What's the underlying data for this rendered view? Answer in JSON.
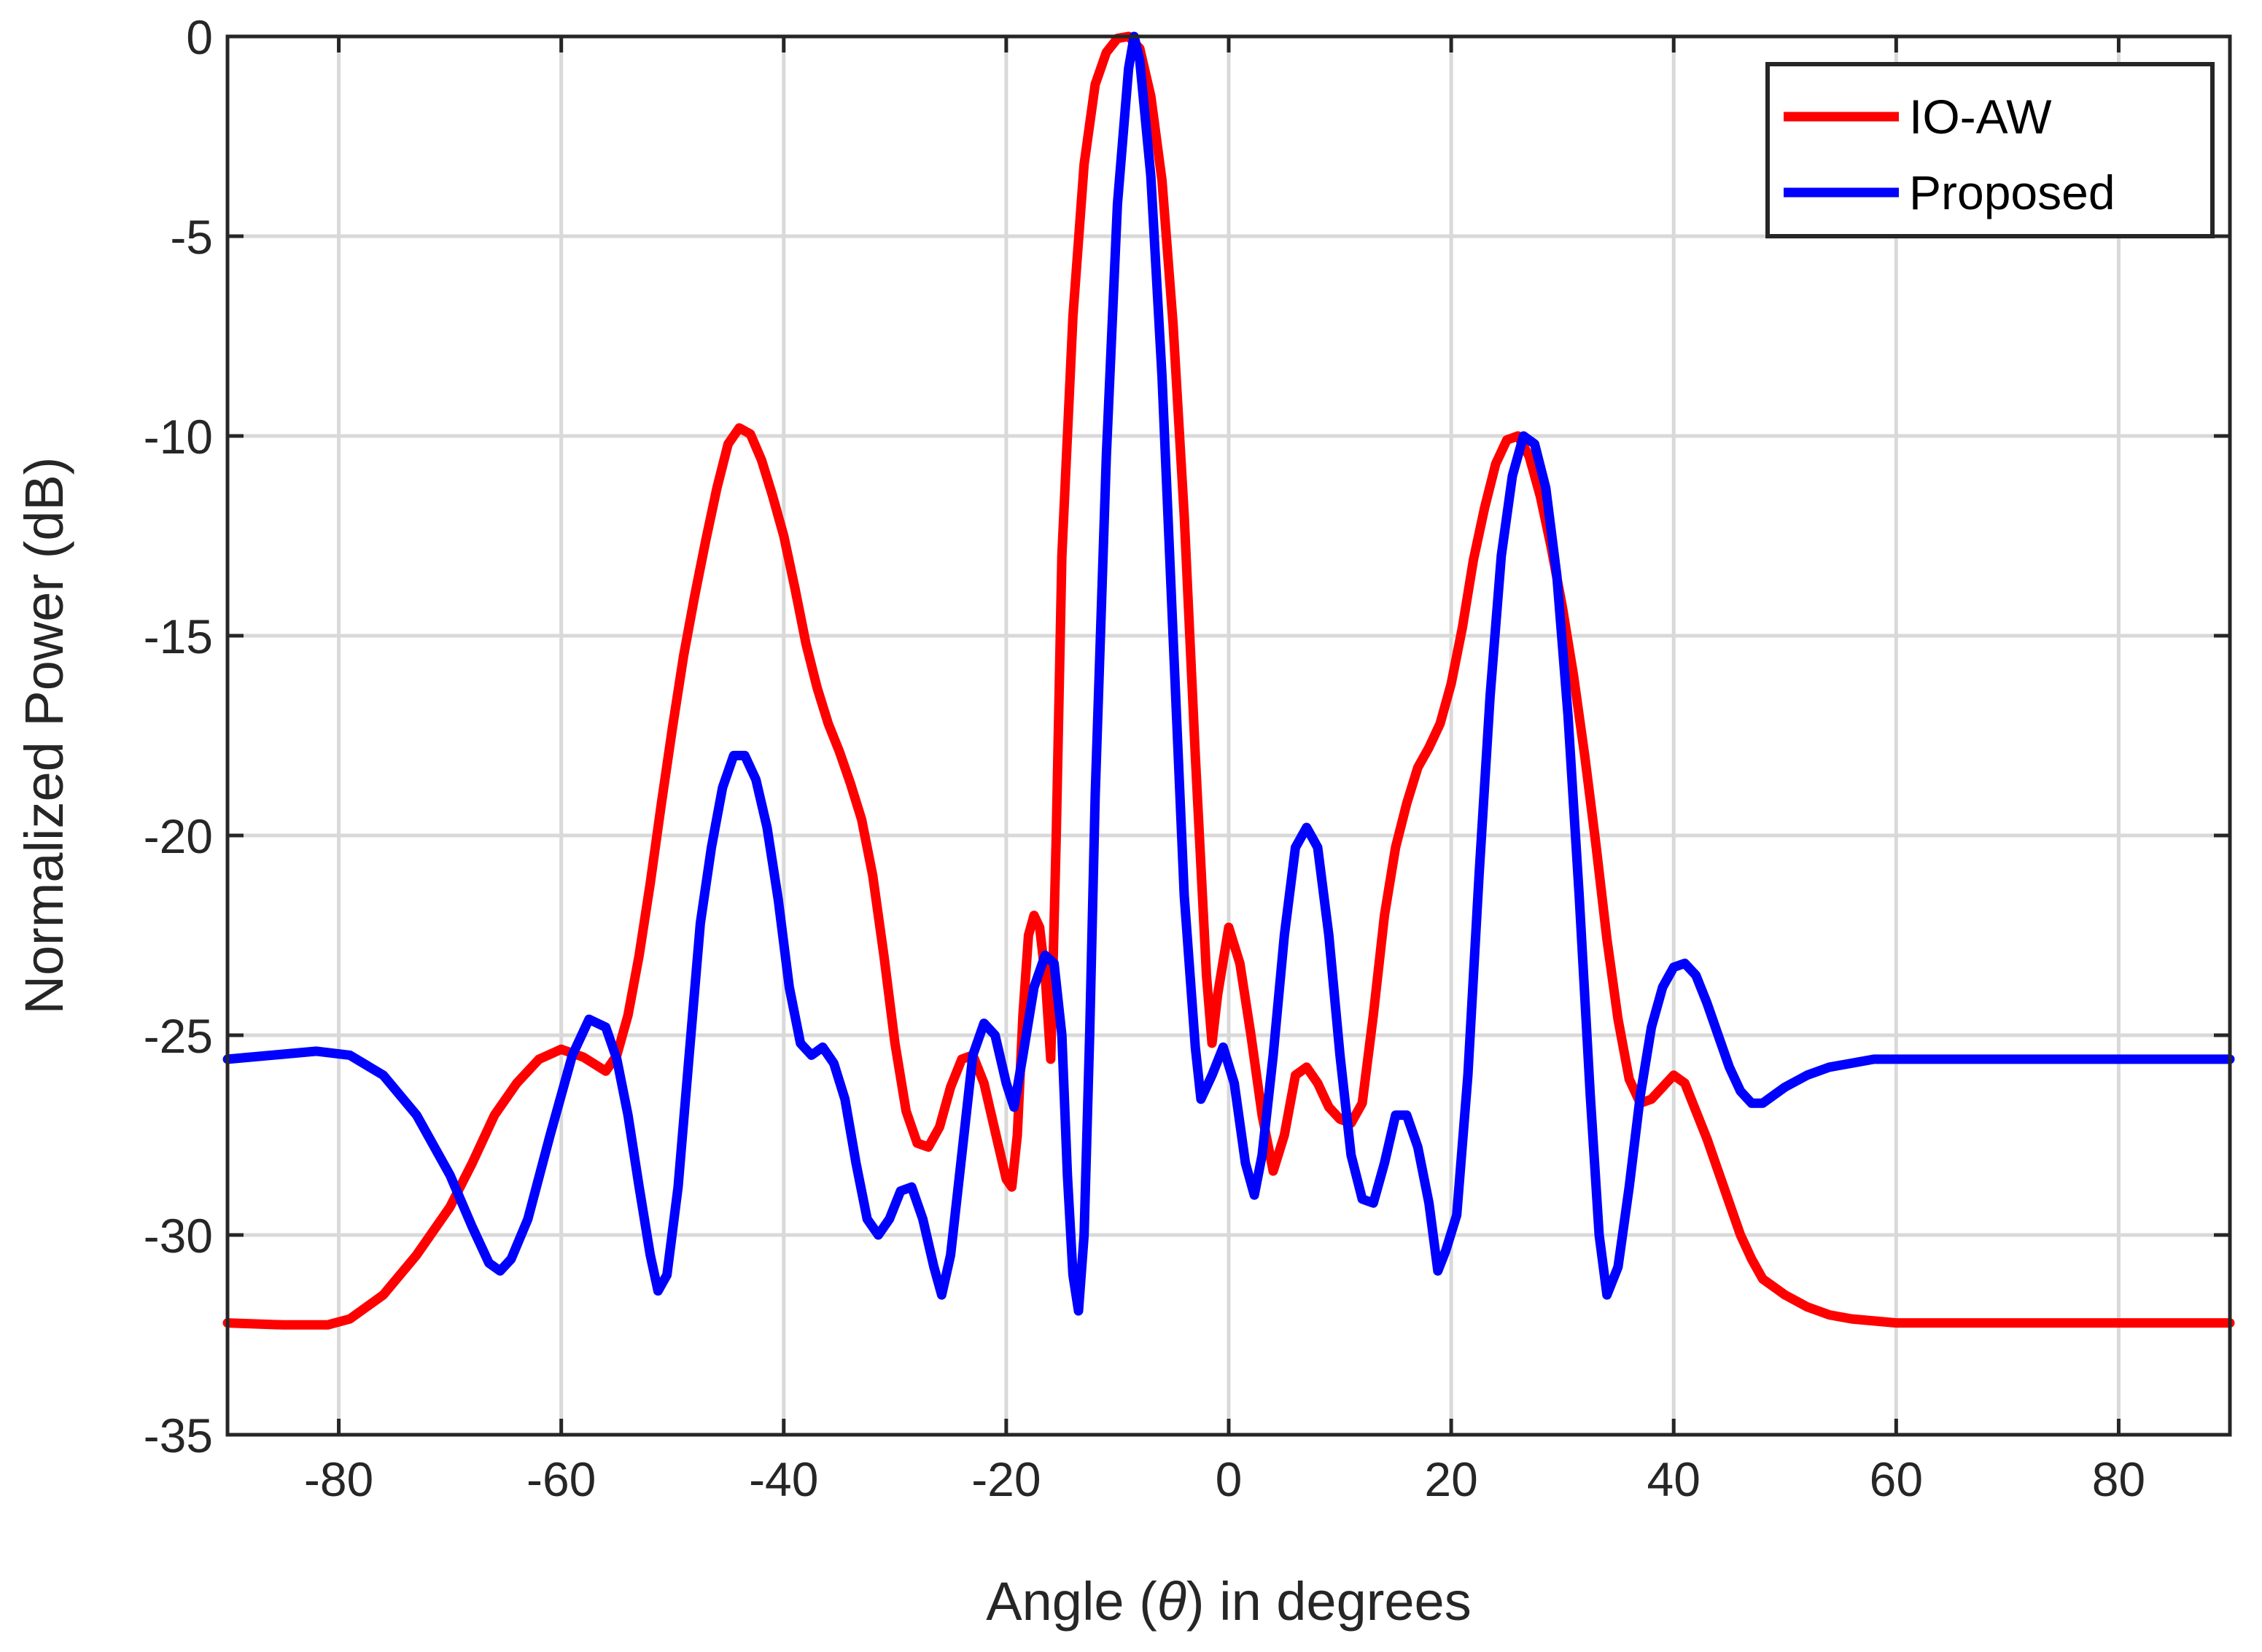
{
  "chart_data": {
    "type": "line",
    "title": "",
    "xlabel": "Angle (θ) in degrees",
    "xlabel_prefix": "Angle (",
    "xlabel_symbol": "θ",
    "xlabel_suffix": ") in degrees",
    "ylabel": "Normalized Power (dB)",
    "xlim": [
      -90,
      90
    ],
    "ylim": [
      -35,
      0
    ],
    "xticks": [
      -80,
      -60,
      -40,
      -20,
      0,
      20,
      40,
      60,
      80
    ],
    "yticks": [
      0,
      -5,
      -10,
      -15,
      -20,
      -25,
      -30,
      -35
    ],
    "grid": true,
    "legend_position": "top-right",
    "series": [
      {
        "name": "IO-AW",
        "color": "#ff0000",
        "points": [
          [
            -90,
            -32.2
          ],
          [
            -85,
            -32.25
          ],
          [
            -81,
            -32.25
          ],
          [
            -79,
            -32.1
          ],
          [
            -76,
            -31.5
          ],
          [
            -73,
            -30.5
          ],
          [
            -70,
            -29.3
          ],
          [
            -68,
            -28.2
          ],
          [
            -66,
            -27.0
          ],
          [
            -64,
            -26.2
          ],
          [
            -62,
            -25.6
          ],
          [
            -60,
            -25.35
          ],
          [
            -58,
            -25.55
          ],
          [
            -56,
            -25.9
          ],
          [
            -55,
            -25.5
          ],
          [
            -54,
            -24.5
          ],
          [
            -53,
            -23.0
          ],
          [
            -52,
            -21.2
          ],
          [
            -51,
            -19.2
          ],
          [
            -50,
            -17.3
          ],
          [
            -49,
            -15.5
          ],
          [
            -48,
            -14.0
          ],
          [
            -47,
            -12.6
          ],
          [
            -46,
            -11.3
          ],
          [
            -45,
            -10.2
          ],
          [
            -44,
            -9.8
          ],
          [
            -43,
            -9.95
          ],
          [
            -42,
            -10.6
          ],
          [
            -41,
            -11.5
          ],
          [
            -40,
            -12.5
          ],
          [
            -39,
            -13.8
          ],
          [
            -38,
            -15.2
          ],
          [
            -37,
            -16.3
          ],
          [
            -36,
            -17.2
          ],
          [
            -35,
            -17.9
          ],
          [
            -34,
            -18.7
          ],
          [
            -33,
            -19.6
          ],
          [
            -32,
            -21.0
          ],
          [
            -31,
            -23.0
          ],
          [
            -30,
            -25.2
          ],
          [
            -29,
            -26.9
          ],
          [
            -28,
            -27.7
          ],
          [
            -27,
            -27.8
          ],
          [
            -26,
            -27.3
          ],
          [
            -25,
            -26.3
          ],
          [
            -24,
            -25.6
          ],
          [
            -23,
            -25.5
          ],
          [
            -22,
            -26.2
          ],
          [
            -21,
            -27.4
          ],
          [
            -20,
            -28.6
          ],
          [
            -19.5,
            -28.8
          ],
          [
            -19,
            -27.5
          ],
          [
            -18.5,
            -24.5
          ],
          [
            -18,
            -22.5
          ],
          [
            -17.5,
            -22.0
          ],
          [
            -17,
            -22.3
          ],
          [
            -16.5,
            -23.5
          ],
          [
            -16,
            -25.6
          ],
          [
            -15.5,
            -20.0
          ],
          [
            -15,
            -13.0
          ],
          [
            -14,
            -7.0
          ],
          [
            -13,
            -3.2
          ],
          [
            -12,
            -1.2
          ],
          [
            -11,
            -0.4
          ],
          [
            -10,
            -0.05
          ],
          [
            -9,
            0.0
          ],
          [
            -8,
            -0.3
          ],
          [
            -7,
            -1.5
          ],
          [
            -6,
            -3.6
          ],
          [
            -5,
            -7.2
          ],
          [
            -4,
            -12.0
          ],
          [
            -3,
            -18.0
          ],
          [
            -2,
            -23.5
          ],
          [
            -1.5,
            -25.2
          ],
          [
            -1,
            -24.0
          ],
          [
            0,
            -22.3
          ],
          [
            1,
            -23.2
          ],
          [
            2,
            -25.0
          ],
          [
            3,
            -27.0
          ],
          [
            4,
            -28.4
          ],
          [
            5,
            -27.5
          ],
          [
            6,
            -26.0
          ],
          [
            7,
            -25.8
          ],
          [
            8,
            -26.2
          ],
          [
            9,
            -26.8
          ],
          [
            10,
            -27.1
          ],
          [
            11,
            -27.2
          ],
          [
            12,
            -26.7
          ],
          [
            13,
            -24.5
          ],
          [
            14,
            -22.0
          ],
          [
            15,
            -20.3
          ],
          [
            16,
            -19.2
          ],
          [
            17,
            -18.3
          ],
          [
            18,
            -17.8
          ],
          [
            19,
            -17.2
          ],
          [
            20,
            -16.2
          ],
          [
            21,
            -14.8
          ],
          [
            22,
            -13.1
          ],
          [
            23,
            -11.8
          ],
          [
            24,
            -10.7
          ],
          [
            25,
            -10.1
          ],
          [
            26,
            -10.0
          ],
          [
            27,
            -10.5
          ],
          [
            28,
            -11.5
          ],
          [
            29,
            -12.8
          ],
          [
            30,
            -14.3
          ],
          [
            31,
            -16.0
          ],
          [
            32,
            -18.0
          ],
          [
            33,
            -20.2
          ],
          [
            34,
            -22.6
          ],
          [
            35,
            -24.6
          ],
          [
            36,
            -26.1
          ],
          [
            37,
            -26.7
          ],
          [
            38,
            -26.6
          ],
          [
            39,
            -26.3
          ],
          [
            40,
            -26.0
          ],
          [
            41,
            -26.2
          ],
          [
            42,
            -26.9
          ],
          [
            43,
            -27.6
          ],
          [
            44,
            -28.4
          ],
          [
            45,
            -29.2
          ],
          [
            46,
            -30.0
          ],
          [
            47,
            -30.6
          ],
          [
            48,
            -31.1
          ],
          [
            50,
            -31.5
          ],
          [
            52,
            -31.8
          ],
          [
            54,
            -32.0
          ],
          [
            56,
            -32.1
          ],
          [
            60,
            -32.2
          ],
          [
            65,
            -32.2
          ],
          [
            70,
            -32.2
          ],
          [
            75,
            -32.2
          ],
          [
            80,
            -32.2
          ],
          [
            85,
            -32.2
          ],
          [
            90,
            -32.2
          ]
        ]
      },
      {
        "name": "Proposed",
        "color": "#0000ff",
        "points": [
          [
            -90,
            -25.6
          ],
          [
            -86,
            -25.5
          ],
          [
            -82,
            -25.4
          ],
          [
            -79,
            -25.5
          ],
          [
            -76,
            -26.0
          ],
          [
            -73,
            -27.0
          ],
          [
            -70,
            -28.5
          ],
          [
            -68,
            -29.8
          ],
          [
            -66.5,
            -30.7
          ],
          [
            -65.5,
            -30.9
          ],
          [
            -64.5,
            -30.6
          ],
          [
            -63,
            -29.6
          ],
          [
            -61,
            -27.5
          ],
          [
            -59,
            -25.5
          ],
          [
            -57.5,
            -24.6
          ],
          [
            -56,
            -24.8
          ],
          [
            -55,
            -25.6
          ],
          [
            -54,
            -27.0
          ],
          [
            -53,
            -28.8
          ],
          [
            -52,
            -30.5
          ],
          [
            -51.3,
            -31.4
          ],
          [
            -50.5,
            -31.0
          ],
          [
            -49.5,
            -28.8
          ],
          [
            -48.5,
            -25.5
          ],
          [
            -47.5,
            -22.2
          ],
          [
            -46.5,
            -20.3
          ],
          [
            -45.5,
            -18.8
          ],
          [
            -44.5,
            -18.0
          ],
          [
            -43.5,
            -18.0
          ],
          [
            -42.5,
            -18.6
          ],
          [
            -41.5,
            -19.8
          ],
          [
            -40.5,
            -21.6
          ],
          [
            -39.5,
            -23.8
          ],
          [
            -38.5,
            -25.2
          ],
          [
            -37.5,
            -25.5
          ],
          [
            -36.5,
            -25.3
          ],
          [
            -35.5,
            -25.7
          ],
          [
            -34.5,
            -26.6
          ],
          [
            -33.5,
            -28.2
          ],
          [
            -32.5,
            -29.6
          ],
          [
            -31.5,
            -30.0
          ],
          [
            -30.5,
            -29.6
          ],
          [
            -29.5,
            -28.9
          ],
          [
            -28.5,
            -28.8
          ],
          [
            -27.5,
            -29.6
          ],
          [
            -26.5,
            -30.8
          ],
          [
            -25.8,
            -31.5
          ],
          [
            -25,
            -30.5
          ],
          [
            -24,
            -28.0
          ],
          [
            -23,
            -25.5
          ],
          [
            -22,
            -24.7
          ],
          [
            -21,
            -25.0
          ],
          [
            -20,
            -26.2
          ],
          [
            -19.3,
            -26.8
          ],
          [
            -18.5,
            -25.5
          ],
          [
            -17.5,
            -23.8
          ],
          [
            -16.5,
            -23.0
          ],
          [
            -15.7,
            -23.2
          ],
          [
            -15,
            -25.0
          ],
          [
            -14.5,
            -28.5
          ],
          [
            -14,
            -31.0
          ],
          [
            -13.5,
            -31.9
          ],
          [
            -13,
            -30.0
          ],
          [
            -12.5,
            -25.0
          ],
          [
            -12,
            -19.0
          ],
          [
            -11,
            -10.5
          ],
          [
            -10,
            -4.2
          ],
          [
            -9,
            -0.8
          ],
          [
            -8.5,
            0.0
          ],
          [
            -8,
            -0.6
          ],
          [
            -7,
            -3.5
          ],
          [
            -6,
            -8.5
          ],
          [
            -5,
            -15.0
          ],
          [
            -4,
            -21.5
          ],
          [
            -3,
            -25.3
          ],
          [
            -2.5,
            -26.6
          ],
          [
            -1.5,
            -26.0
          ],
          [
            -0.5,
            -25.3
          ],
          [
            0.5,
            -26.2
          ],
          [
            1.5,
            -28.2
          ],
          [
            2.3,
            -29.0
          ],
          [
            3,
            -28.0
          ],
          [
            4,
            -25.5
          ],
          [
            5,
            -22.5
          ],
          [
            6,
            -20.3
          ],
          [
            7,
            -19.8
          ],
          [
            8,
            -20.3
          ],
          [
            9,
            -22.5
          ],
          [
            10,
            -25.5
          ],
          [
            11,
            -28.0
          ],
          [
            12,
            -29.1
          ],
          [
            13,
            -29.2
          ],
          [
            14,
            -28.2
          ],
          [
            15,
            -27.0
          ],
          [
            16,
            -27.0
          ],
          [
            17,
            -27.8
          ],
          [
            18,
            -29.2
          ],
          [
            18.8,
            -30.9
          ],
          [
            19.5,
            -30.4
          ],
          [
            20.5,
            -29.5
          ],
          [
            21.5,
            -26.0
          ],
          [
            22.5,
            -21.0
          ],
          [
            23.5,
            -16.5
          ],
          [
            24.5,
            -13.0
          ],
          [
            25.5,
            -11.0
          ],
          [
            26.5,
            -10.0
          ],
          [
            27.5,
            -10.2
          ],
          [
            28.5,
            -11.3
          ],
          [
            29.5,
            -13.5
          ],
          [
            30.5,
            -17.0
          ],
          [
            31.5,
            -21.5
          ],
          [
            32.5,
            -26.5
          ],
          [
            33.3,
            -30.0
          ],
          [
            34,
            -31.5
          ],
          [
            35,
            -30.8
          ],
          [
            36,
            -28.8
          ],
          [
            37,
            -26.5
          ],
          [
            38,
            -24.8
          ],
          [
            39,
            -23.8
          ],
          [
            40,
            -23.3
          ],
          [
            41,
            -23.2
          ],
          [
            42,
            -23.5
          ],
          [
            43,
            -24.2
          ],
          [
            44,
            -25.0
          ],
          [
            45,
            -25.8
          ],
          [
            46,
            -26.4
          ],
          [
            47,
            -26.7
          ],
          [
            48,
            -26.7
          ],
          [
            49,
            -26.5
          ],
          [
            50,
            -26.3
          ],
          [
            52,
            -26.0
          ],
          [
            54,
            -25.8
          ],
          [
            56,
            -25.7
          ],
          [
            58,
            -25.6
          ],
          [
            60,
            -25.6
          ],
          [
            62,
            -25.6
          ],
          [
            64,
            -25.6
          ],
          [
            66,
            -25.6
          ],
          [
            70,
            -25.6
          ],
          [
            75,
            -25.6
          ],
          [
            80,
            -25.6
          ],
          [
            85,
            -25.6
          ],
          [
            90,
            -25.6
          ]
        ]
      }
    ]
  }
}
